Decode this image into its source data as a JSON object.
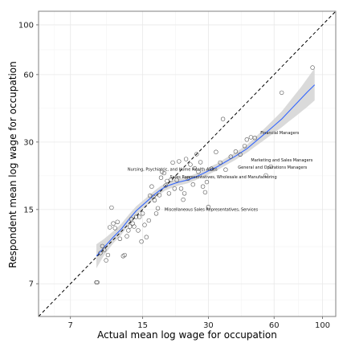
{
  "chart_data": {
    "type": "scatter",
    "xlabel": "Actual mean log wage for occupation",
    "ylabel": "Respondent mean log wage for occupation",
    "scale": "log",
    "xlim": [
      5,
      115
    ],
    "ylim": [
      5,
      115
    ],
    "xticks": [
      7,
      15,
      30,
      60,
      100
    ],
    "yticks": [
      7,
      15,
      30,
      60,
      100
    ],
    "grid": true,
    "reference_line": "y = x (dashed)",
    "smooth": {
      "color": "#3366FF",
      "band_color": "#d3d3d3",
      "points": [
        [
          9.2,
          9.3
        ],
        [
          10,
          10.2
        ],
        [
          11,
          11.3
        ],
        [
          12,
          12.3
        ],
        [
          13,
          13.6
        ],
        [
          14,
          14.8
        ],
        [
          15,
          15.7
        ],
        [
          16,
          16.6
        ],
        [
          17,
          17.5
        ],
        [
          18,
          18.3
        ],
        [
          19,
          18.9
        ],
        [
          20,
          19.3
        ],
        [
          21,
          19.6
        ],
        [
          22,
          19.9
        ],
        [
          24,
          20.3
        ],
        [
          26,
          20.9
        ],
        [
          28,
          21.6
        ],
        [
          30,
          22.3
        ],
        [
          33,
          23.3
        ],
        [
          36,
          24.5
        ],
        [
          40,
          26
        ],
        [
          45,
          28
        ],
        [
          50,
          30.5
        ],
        [
          55,
          33
        ],
        [
          60,
          35.5
        ],
        [
          65,
          38
        ],
        [
          70,
          41
        ],
        [
          75,
          44
        ],
        [
          80,
          47
        ],
        [
          85,
          50
        ],
        [
          92,
          54
        ]
      ],
      "band": [
        [
          9.2,
          8.2,
          10.5
        ],
        [
          10,
          9.4,
          11.1
        ],
        [
          11,
          10.6,
          12
        ],
        [
          12,
          11.6,
          13
        ],
        [
          13,
          12.9,
          14.3
        ],
        [
          14,
          14.1,
          15.5
        ],
        [
          15,
          15,
          16.4
        ],
        [
          16,
          15.9,
          17.3
        ],
        [
          17,
          16.8,
          18.2
        ],
        [
          18,
          17.6,
          19
        ],
        [
          19,
          18.2,
          19.6
        ],
        [
          20,
          18.6,
          20
        ],
        [
          21,
          18.9,
          20.3
        ],
        [
          22,
          19.2,
          20.6
        ],
        [
          24,
          19.6,
          21
        ],
        [
          26,
          20.2,
          21.6
        ],
        [
          28,
          20.9,
          22.3
        ],
        [
          30,
          21.5,
          23.1
        ],
        [
          33,
          22.5,
          24.1
        ],
        [
          36,
          23.6,
          25.4
        ],
        [
          40,
          25,
          27
        ],
        [
          45,
          26.9,
          29.1
        ],
        [
          50,
          29,
          32
        ],
        [
          55,
          31,
          35
        ],
        [
          60,
          33,
          38
        ],
        [
          65,
          34.9,
          41.1
        ],
        [
          70,
          37,
          45
        ],
        [
          75,
          39,
          49
        ],
        [
          80,
          41,
          53
        ],
        [
          85,
          43,
          57.5
        ],
        [
          92,
          46,
          64
        ]
      ]
    },
    "points": [
      [
        9.2,
        7.1
      ],
      [
        9.3,
        7.1
      ],
      [
        9.6,
        9.6
      ],
      [
        9.8,
        10.3
      ],
      [
        10,
        9.9
      ],
      [
        10.2,
        8.9
      ],
      [
        10.4,
        9.4
      ],
      [
        10.6,
        12.5
      ],
      [
        10.8,
        15.3
      ],
      [
        11,
        13
      ],
      [
        11.2,
        12.4
      ],
      [
        11.5,
        13.2
      ],
      [
        11.8,
        11.1
      ],
      [
        12.2,
        9.3
      ],
      [
        12.4,
        9.4
      ],
      [
        12.7,
        11.4
      ],
      [
        12.9,
        12.1
      ],
      [
        13.1,
        12.6
      ],
      [
        13.3,
        13.6
      ],
      [
        13.5,
        13
      ],
      [
        13.7,
        12.6
      ],
      [
        14,
        13.9
      ],
      [
        14.3,
        12.1
      ],
      [
        14.5,
        13.9
      ],
      [
        14.8,
        10.8
      ],
      [
        15,
        14.4
      ],
      [
        15.3,
        12.8
      ],
      [
        15.6,
        11.3
      ],
      [
        16,
        13.4
      ],
      [
        16.2,
        17.3
      ],
      [
        16.5,
        19
      ],
      [
        16.8,
        17.1
      ],
      [
        17,
        16.5
      ],
      [
        17.3,
        14.4
      ],
      [
        17.6,
        15.2
      ],
      [
        17.9,
        17.4
      ],
      [
        18.2,
        20.8
      ],
      [
        18.4,
        22.1
      ],
      [
        18.8,
        21.8
      ],
      [
        19.1,
        19.2
      ],
      [
        19.4,
        20.1
      ],
      [
        19.8,
        17.7
      ],
      [
        20.2,
        20.4
      ],
      [
        20.6,
        24.3
      ],
      [
        21,
        18.6
      ],
      [
        21.5,
        20.3
      ],
      [
        22,
        24.6
      ],
      [
        22.5,
        18.6
      ],
      [
        23,
        16.6
      ],
      [
        23.3,
        17.7
      ],
      [
        23.7,
        25.2
      ],
      [
        24.2,
        20.6
      ],
      [
        24.8,
        23.8
      ],
      [
        25.5,
        19.4
      ],
      [
        26,
        22.9
      ],
      [
        26.5,
        26.5
      ],
      [
        27,
        22.1
      ],
      [
        27.6,
        24.4
      ],
      [
        28.3,
        19
      ],
      [
        29,
        17.9
      ],
      [
        29.5,
        19.9
      ],
      [
        30,
        15.4
      ],
      [
        31,
        22.8
      ],
      [
        32.5,
        27.1
      ],
      [
        34,
        24.3
      ],
      [
        35,
        38
      ],
      [
        36,
        22.6
      ],
      [
        38,
        25.8
      ],
      [
        40,
        27.2
      ],
      [
        42,
        26.4
      ],
      [
        44,
        28.8
      ],
      [
        45,
        30.8
      ],
      [
        47,
        31.5
      ],
      [
        49,
        31.3
      ],
      [
        55,
        21.3
      ],
      [
        58,
        23.3
      ],
      [
        65,
        49.8
      ],
      [
        90,
        64.5
      ]
    ],
    "annotations": [
      {
        "text": "Financial Managers",
        "x": 52,
        "y": 32.5
      },
      {
        "text": "Marketing and Sales Managers",
        "x": 47,
        "y": 24.6
      },
      {
        "text": "General and Operations Managers",
        "x": 41,
        "y": 22.8
      },
      {
        "text": "Nursing, Psychiatric, and Home Health Aides",
        "x": 12.8,
        "y": 22.4
      },
      {
        "text": "Sales Representatives, Wholesale and Manufacturing",
        "x": 20,
        "y": 20.7
      },
      {
        "text": "Miscellaneous Sales Representatives, Services",
        "x": 18.9,
        "y": 14.8
      }
    ],
    "colors": {
      "panel": "#ffffff",
      "grid_major": "#e8e8e8",
      "grid_minor": "#f4f4f4",
      "border": "#7f7f7f",
      "points": "#4d4d4d",
      "reference_line": "#000000"
    }
  }
}
